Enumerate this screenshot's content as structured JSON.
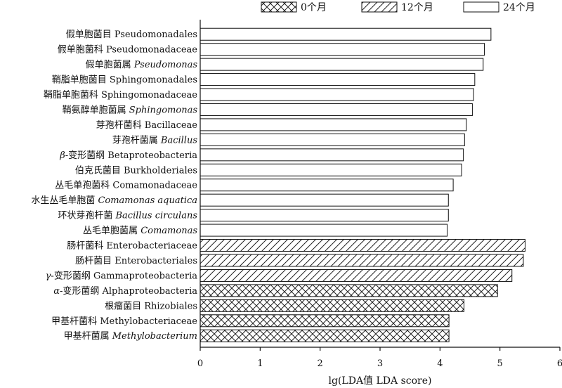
{
  "chart_data": {
    "type": "bar",
    "orientation": "horizontal",
    "xlabel": "lg(LDA值 LDA score)",
    "xlim": [
      0,
      6
    ],
    "xticks": [
      "0",
      "1",
      "2",
      "3",
      "4",
      "5",
      "6"
    ],
    "grid": false,
    "legend_position": "top",
    "legend": [
      {
        "name": "0个月",
        "pattern": "crosshatch"
      },
      {
        "name": "12个月",
        "pattern": "diagonal"
      },
      {
        "name": "24个月",
        "pattern": "none"
      }
    ],
    "bars": [
      {
        "cn": "假单胞菌目",
        "latin": "Pseudomonadales",
        "italic": false,
        "value": 4.85,
        "group": 2
      },
      {
        "cn": "假单胞菌科",
        "latin": "Pseudomonadaceae",
        "italic": false,
        "value": 4.74,
        "group": 2
      },
      {
        "cn": "假单胞菌属",
        "latin": "Pseudomonas",
        "italic": true,
        "value": 4.72,
        "group": 2
      },
      {
        "cn": "鞘脂单胞菌目",
        "latin": "Sphingomonadales",
        "italic": false,
        "value": 4.58,
        "group": 2
      },
      {
        "cn": "鞘脂单胞菌科",
        "latin": "Sphingomonadaceae",
        "italic": false,
        "value": 4.56,
        "group": 2
      },
      {
        "cn": "鞘氨醇单胞菌属",
        "latin": "Sphingomonas",
        "italic": true,
        "value": 4.54,
        "group": 2
      },
      {
        "cn": "芽孢杆菌科",
        "latin": "Bacillaceae",
        "italic": false,
        "value": 4.44,
        "group": 2
      },
      {
        "cn": "芽孢杆菌属",
        "latin": "Bacillus",
        "italic": true,
        "value": 4.41,
        "group": 2
      },
      {
        "cn": "β-变形菌纲",
        "latin": "Betaproteobacteria",
        "italic": false,
        "value": 4.39,
        "group": 2,
        "cn_italic_prefix": "β"
      },
      {
        "cn": "伯克氏菌目",
        "latin": "Burkholderiales",
        "italic": false,
        "value": 4.36,
        "group": 2
      },
      {
        "cn": "丛毛单孢菌科",
        "latin": "Comamonadaceae",
        "italic": false,
        "value": 4.22,
        "group": 2
      },
      {
        "cn": "水生丛毛单胞菌",
        "latin": "Comamonas aquatica",
        "italic": true,
        "value": 4.14,
        "group": 2
      },
      {
        "cn": "环状芽孢杆菌",
        "latin": "Bacillus circulans",
        "italic": true,
        "value": 4.14,
        "group": 2
      },
      {
        "cn": "丛毛单胞菌属",
        "latin": "Comamonas",
        "italic": true,
        "value": 4.12,
        "group": 2
      },
      {
        "cn": "肠杆菌科",
        "latin": "Enterobacteriaceae",
        "italic": false,
        "value": 5.42,
        "group": 1
      },
      {
        "cn": "肠杆菌目",
        "latin": "Enterobacteriales",
        "italic": false,
        "value": 5.39,
        "group": 1
      },
      {
        "cn": "γ-变形菌纲",
        "latin": "Gammaproteobacteria",
        "italic": false,
        "value": 5.2,
        "group": 1,
        "cn_italic_prefix": "γ"
      },
      {
        "cn": "α-变形菌纲",
        "latin": "Alphaproteobacteria",
        "italic": false,
        "value": 4.96,
        "group": 0,
        "cn_italic_prefix": "α"
      },
      {
        "cn": "根瘤菌目",
        "latin": "Rhizobiales",
        "italic": false,
        "value": 4.4,
        "group": 0
      },
      {
        "cn": "甲基杆菌科",
        "latin": "Methylobacteriaceae",
        "italic": false,
        "value": 4.15,
        "group": 0
      },
      {
        "cn": "甲基杆菌属",
        "latin": "Methylobacterium",
        "italic": true,
        "value": 4.15,
        "group": 0
      }
    ]
  }
}
